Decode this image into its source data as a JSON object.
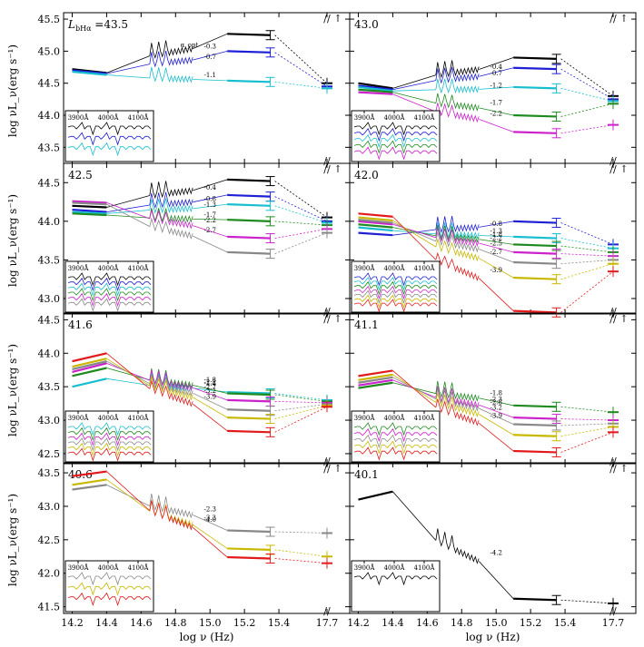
{
  "chart_data": {
    "type": "line",
    "figure": {
      "xlabel": "log ν (Hz)",
      "ylabel": "log νL_ν(erg s⁻¹)",
      "x_ticks": [
        "14.2",
        "14.4",
        "14.6",
        "14.8",
        "15.0",
        "15.2",
        "15.4",
        "17.7"
      ],
      "axis_break_mark": "//",
      "up_arrow": "↑",
      "inset_labels": [
        "3900Å",
        "4000Å",
        "4100Å"
      ],
      "alpha_label_text": "α_opt",
      "lbha_prefix": "L",
      "lbha_sub": "bHα",
      "lbha_eq": " =",
      "colors": {
        "black": "#000000",
        "blue": "#1f1fd6",
        "cyan": "#17becf",
        "green": "#1f8a1f",
        "magenta": "#cc22cc",
        "gray": "#888888",
        "yellow": "#c9b800",
        "orange": "#ff8c1a",
        "red": "#e31a1c"
      }
    },
    "panels": [
      {
        "label": "43.5",
        "show_lbha_prefix": true,
        "show_alpha_label": true,
        "ylim": [
          43.25,
          45.6
        ],
        "yticks": [
          "43.5",
          "44.0",
          "44.5",
          "45.0",
          "45.5"
        ],
        "series": [
          {
            "name": "α = -0.3",
            "alpha": "-0.3",
            "color": "black",
            "ir": [
              44.72,
              44.66
            ],
            "uv": 45.25,
            "xray": 44.5
          },
          {
            "name": "α = -0.7",
            "alpha": "-0.7",
            "color": "blue",
            "ir": [
              44.7,
              44.65
            ],
            "uv": 44.98,
            "xray": 44.45
          },
          {
            "name": "α = -1.1",
            "alpha": "-1.1",
            "color": "cyan",
            "ir": [
              44.68,
              44.63
            ],
            "uv": 44.52,
            "xray": 44.42
          }
        ]
      },
      {
        "label": "43.0",
        "ylim": [
          43.25,
          45.6
        ],
        "yticks": [
          "43.5",
          "44.0",
          "44.5",
          "45.0",
          "45.5"
        ],
        "series": [
          {
            "name": "α = -0.4",
            "alpha": "-0.4",
            "color": "black",
            "ir": [
              44.5,
              44.42
            ],
            "uv": 44.88,
            "xray": 44.3
          },
          {
            "name": "α = -0.7",
            "alpha": "-0.7",
            "color": "blue",
            "ir": [
              44.46,
              44.4
            ],
            "uv": 44.72,
            "xray": 44.25
          },
          {
            "name": "α = -1.2",
            "alpha": "-1.2",
            "color": "cyan",
            "ir": [
              44.44,
              44.38
            ],
            "uv": 44.42,
            "xray": 44.22
          },
          {
            "name": "α = -1.7",
            "alpha": "-1.7",
            "color": "green",
            "ir": [
              44.4,
              44.36
            ],
            "uv": 43.98,
            "xray": 44.18
          },
          {
            "name": "α = -2.2",
            "alpha": "-2.2",
            "color": "magenta",
            "ir": [
              44.36,
              44.33
            ],
            "uv": 43.72,
            "xray": 43.85
          }
        ]
      },
      {
        "label": "42.5",
        "ylim": [
          42.8,
          44.75
        ],
        "yticks": [
          "43.0",
          "43.5",
          "44.0",
          "44.5"
        ],
        "series": [
          {
            "name": "α = -0.4",
            "alpha": "-0.4",
            "color": "black",
            "ir": [
              44.2,
              44.18
            ],
            "uv": 44.52,
            "xray": 44.05
          },
          {
            "name": "α = -0.8",
            "alpha": "-0.8",
            "color": "blue",
            "ir": [
              44.15,
              44.12
            ],
            "uv": 44.32,
            "xray": 44.0
          },
          {
            "name": "α = -1.3",
            "alpha": "-1.3",
            "color": "cyan",
            "ir": [
              44.12,
              44.1
            ],
            "uv": 44.2,
            "xray": 43.98
          },
          {
            "name": "α = -1.7",
            "alpha": "-1.7",
            "color": "green",
            "ir": [
              44.1,
              44.08
            ],
            "uv": 44.0,
            "xray": 43.95
          },
          {
            "name": "α = -2.2",
            "alpha": "-2.2",
            "color": "magenta",
            "ir": [
              44.26,
              44.24
            ],
            "uv": 43.78,
            "xray": 43.9
          },
          {
            "name": "α = -2.7",
            "alpha": "-2.7",
            "color": "gray",
            "ir": [
              44.24,
              44.22
            ],
            "uv": 43.58,
            "xray": 43.85
          }
        ]
      },
      {
        "label": "42.0",
        "ylim": [
          42.8,
          44.75
        ],
        "yticks": [
          "43.0",
          "43.5",
          "44.0",
          "44.5"
        ],
        "series": [
          {
            "name": "α = -0.8",
            "alpha": "-0.8",
            "color": "blue",
            "ir": [
              43.85,
              43.82
            ],
            "uv": 43.98,
            "xray": 43.7
          },
          {
            "name": "α = -1.3",
            "alpha": "-1.3",
            "color": "cyan",
            "ir": [
              43.92,
              43.88
            ],
            "uv": 43.78,
            "xray": 43.65
          },
          {
            "name": "α = -1.8",
            "alpha": "-1.8",
            "color": "green",
            "ir": [
              43.96,
              43.92
            ],
            "uv": 43.68,
            "xray": 43.6
          },
          {
            "name": "α = -2.2",
            "alpha": "-2.2",
            "color": "magenta",
            "ir": [
              44.0,
              43.96
            ],
            "uv": 43.58,
            "xray": 43.55
          },
          {
            "name": "α = -2.5",
            "alpha": "-2.5",
            "color": "gray",
            "ir": [
              44.02,
              43.98
            ],
            "uv": 43.45,
            "xray": 43.5
          },
          {
            "name": "α = -2.7",
            "alpha": "-2.7",
            "color": "yellow",
            "ir": [
              44.05,
              44.01
            ],
            "uv": 43.25,
            "xray": 43.45
          },
          {
            "name": "α = -3.9",
            "alpha": "-3.9",
            "color": "red",
            "ir": [
              44.1,
              44.06
            ],
            "uv": 42.82,
            "xray": 43.35
          }
        ]
      },
      {
        "label": "41.6",
        "ylim": [
          42.35,
          44.6
        ],
        "yticks": [
          "42.5",
          "43.0",
          "43.5",
          "44.0",
          "44.5"
        ],
        "series": [
          {
            "name": "α = -1.4",
            "alpha": "-1.4",
            "color": "cyan",
            "ir": [
              43.5,
              43.62
            ],
            "uv": 43.4,
            "xray": 43.3
          },
          {
            "name": "α = -1.8",
            "alpha": "-1.8",
            "color": "green",
            "ir": [
              43.66,
              43.78
            ],
            "uv": 43.38,
            "xray": 43.28
          },
          {
            "name": "α = -2.2",
            "alpha": "-2.2",
            "color": "magenta",
            "ir": [
              43.72,
              43.85
            ],
            "uv": 43.28,
            "xray": 43.26
          },
          {
            "name": "α = -2.7",
            "alpha": "-2.7",
            "color": "gray",
            "ir": [
              43.76,
              43.88
            ],
            "uv": 43.14,
            "xray": 43.24
          },
          {
            "name": "α = -3.2",
            "alpha": "-3.2",
            "color": "yellow",
            "ir": [
              43.8,
              43.92
            ],
            "uv": 43.02,
            "xray": 43.22
          },
          {
            "name": "α = -3.9",
            "alpha": "-3.9",
            "color": "red",
            "ir": [
              43.88,
              44.0
            ],
            "uv": 42.82,
            "xray": 43.2
          }
        ]
      },
      {
        "label": "41.1",
        "ylim": [
          42.35,
          44.6
        ],
        "yticks": [
          "42.5",
          "43.0",
          "43.5",
          "44.0",
          "44.5"
        ],
        "series": [
          {
            "name": "α = -1.8",
            "alpha": "-1.8",
            "color": "green",
            "ir": [
              43.48,
              43.56
            ],
            "uv": 43.2,
            "xray": 43.12
          },
          {
            "name": "α = -2.3",
            "alpha": "-2.3",
            "color": "magenta",
            "ir": [
              43.52,
              43.6
            ],
            "uv": 43.02,
            "xray": 43.0
          },
          {
            "name": "α = -2.8",
            "alpha": "-2.8",
            "color": "gray",
            "ir": [
              43.56,
              43.64
            ],
            "uv": 42.92,
            "xray": 42.95
          },
          {
            "name": "α = -3.2",
            "alpha": "-3.2",
            "color": "yellow",
            "ir": [
              43.6,
              43.68
            ],
            "uv": 42.76,
            "xray": 42.9
          },
          {
            "name": "α = -3.9",
            "alpha": "-3.9",
            "color": "red",
            "ir": [
              43.66,
              43.74
            ],
            "uv": 42.52,
            "xray": 42.82
          }
        ]
      },
      {
        "label": "40.6",
        "ylim": [
          41.4,
          43.65
        ],
        "yticks": [
          "41.5",
          "42.0",
          "42.5",
          "43.0",
          "43.5"
        ],
        "series": [
          {
            "name": "α = -2.3",
            "alpha": "-2.3",
            "color": "gray",
            "ir": [
              43.25,
              43.32
            ],
            "uv": 42.62,
            "xray": 42.6
          },
          {
            "name": "α = -3.3",
            "alpha": "-3.3",
            "color": "yellow",
            "ir": [
              43.32,
              43.4
            ],
            "uv": 42.35,
            "xray": 42.25
          },
          {
            "name": "α = -4.0",
            "alpha": "-4.0",
            "color": "red",
            "ir": [
              43.45,
              43.52
            ],
            "uv": 42.22,
            "xray": 42.15
          }
        ]
      },
      {
        "label": "40.1",
        "ylim": [
          41.4,
          43.65
        ],
        "yticks": [
          "41.5",
          "42.0",
          "42.5",
          "43.0",
          "43.5"
        ],
        "series": [
          {
            "name": "α = -4.2",
            "alpha": "-4.2",
            "color": "black",
            "ir": [
              43.1,
              43.22
            ],
            "uv": 41.6,
            "xray": 41.55
          }
        ]
      }
    ]
  }
}
